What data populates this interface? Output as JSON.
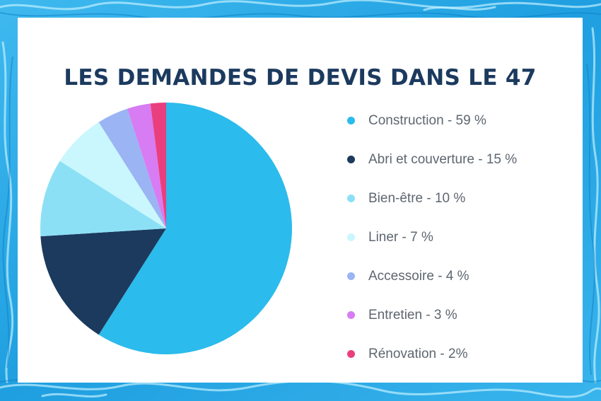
{
  "page": {
    "background_color": "#2fa9e6",
    "card_color": "#ffffff"
  },
  "chart_data": {
    "type": "pie",
    "title": "LES DEMANDES DE DEVIS DANS LE 47",
    "categories": [
      "Construction",
      "Abri et couverture",
      "Bien-être",
      "Liner",
      "Accessoire",
      "Entretien",
      "Rénovation"
    ],
    "values": [
      59,
      15,
      10,
      7,
      4,
      3,
      2
    ],
    "colors": [
      "#2bbbec",
      "#1c3a5e",
      "#8ce0f6",
      "#c9f7fd",
      "#9bb4f4",
      "#d77cf2",
      "#ea3f7e"
    ],
    "legend_labels": [
      "Construction - 59 %",
      "Abri et couverture - 15 %",
      "Bien-être - 10 %",
      "Liner - 7 %",
      "Accessoire - 4 %",
      "Entretien - 3 %",
      "Rénovation - 2%"
    ],
    "legend_position": "right",
    "start_angle_deg": 0,
    "direction": "clockwise"
  }
}
